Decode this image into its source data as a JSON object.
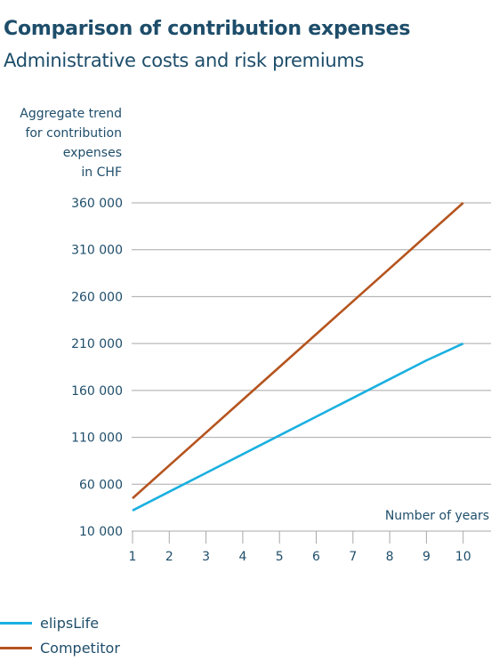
{
  "title": "Comparison of contribution expenses",
  "subtitle": "Administrative costs and risk premiums",
  "chart_data": {
    "type": "line",
    "title": "Comparison of contribution expenses",
    "subtitle": "Administrative costs and risk premiums",
    "ylabel_lines": [
      "Aggregate trend",
      "for contribution",
      "expenses",
      "in CHF"
    ],
    "xlabel": "Number of years",
    "x": [
      1,
      2,
      3,
      4,
      5,
      6,
      7,
      8,
      9,
      10
    ],
    "xticks": [
      "1",
      "2",
      "3",
      "4",
      "5",
      "6",
      "7",
      "8",
      "9",
      "10"
    ],
    "yticks": [
      10000,
      60000,
      110000,
      160000,
      210000,
      260000,
      310000,
      360000
    ],
    "ytick_labels": [
      "10 000",
      "60 000",
      "110 000",
      "160 000",
      "210 000",
      "260 000",
      "310 000",
      "360 000"
    ],
    "ylim": [
      10000,
      360000
    ],
    "grid": true,
    "legend_position": "bottom-left",
    "series": [
      {
        "name": "elipsLife",
        "color": "#1ab0e0",
        "values": [
          32000,
          52000,
          72000,
          92000,
          112000,
          132000,
          152000,
          172000,
          192000,
          210000
        ]
      },
      {
        "name": "Competitor",
        "color": "#b5541e",
        "values": [
          45000,
          80000,
          115000,
          150000,
          185000,
          220000,
          255000,
          290000,
          325000,
          360000
        ]
      }
    ]
  }
}
